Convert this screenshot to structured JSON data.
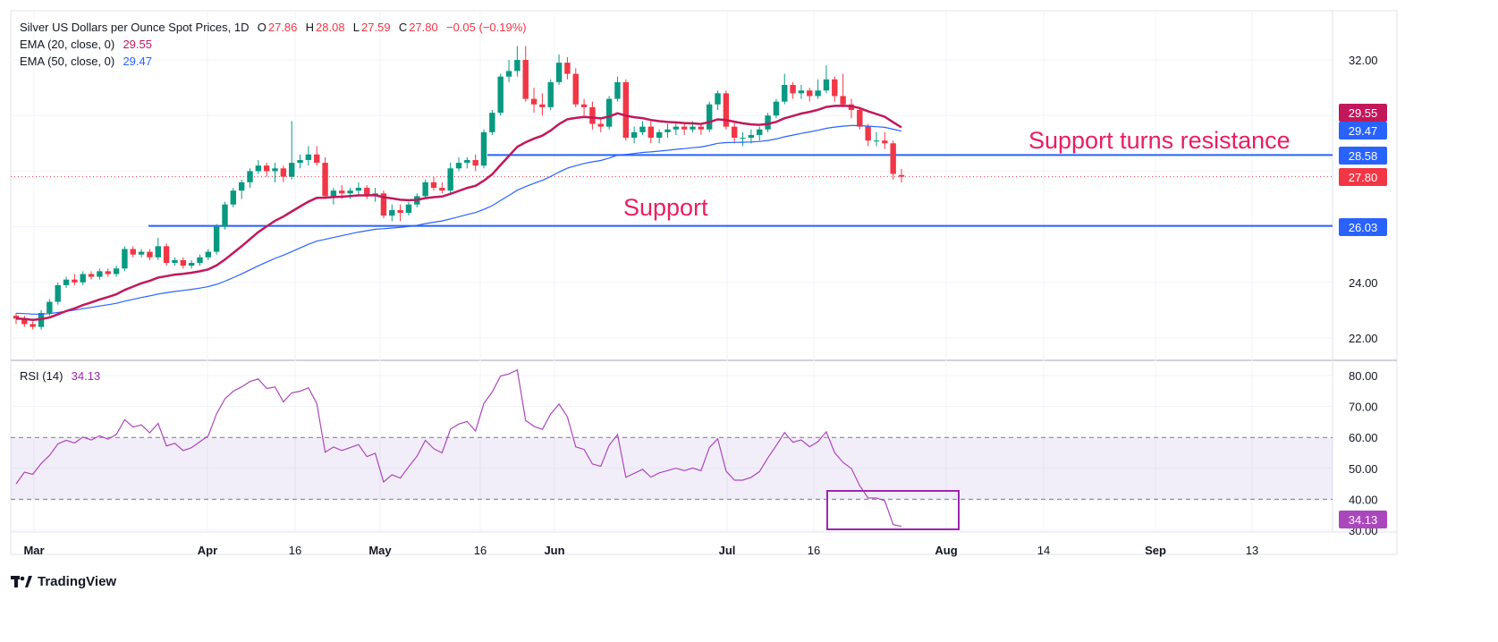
{
  "header": {
    "symbol": "Silver US Dollars per Ounce Spot Prices, 1D",
    "o_label": "O",
    "o": "27.86",
    "h_label": "H",
    "h": "28.08",
    "l_label": "L",
    "l": "27.59",
    "c_label": "C",
    "c": "27.80",
    "change": "−0.05 (−0.19%)"
  },
  "indicators": {
    "ema20": {
      "label": "EMA (20, close, 0)",
      "value": "29.55",
      "color": "#c2185b"
    },
    "ema50": {
      "label": "EMA (50, close, 0)",
      "value": "29.47",
      "color": "#2962ff"
    },
    "rsi": {
      "label": "RSI (14)",
      "value": "34.13",
      "color": "#9c27b0"
    }
  },
  "annotations": {
    "resistance_text": "Support turns resistance",
    "support_text": "Support",
    "resistance_level": 28.58,
    "support_level": 26.03,
    "resistance_label": "28.58",
    "support_label": "26.03",
    "last_price_label": "27.80"
  },
  "footer": {
    "brand": "TradingView"
  },
  "chart_data": {
    "type": "candlestick",
    "title": "Silver US Dollars per Ounce Spot Prices, 1D",
    "colors": {
      "up": "#089981",
      "down": "#f23645"
    },
    "ylim": [
      21.3,
      32.8
    ],
    "y_ticks": [
      "32.00",
      "24.00",
      "22.00"
    ],
    "rsi_ylim": [
      29,
      84
    ],
    "rsi_ticks": [
      "80.00",
      "70.00",
      "60.00",
      "50.00",
      "40.00",
      "30.00"
    ],
    "rsi_bands": [
      40,
      60
    ],
    "x_ticks": [
      "Mar",
      "Apr",
      "16",
      "May",
      "16",
      "Jun",
      "Jul",
      "16",
      "Aug",
      "14",
      "Sep",
      "13"
    ],
    "candles": [
      [
        22.8,
        22.9,
        22.5,
        22.7
      ],
      [
        22.7,
        22.8,
        22.4,
        22.5
      ],
      [
        22.5,
        22.6,
        22.3,
        22.4
      ],
      [
        22.4,
        23.0,
        22.3,
        22.9
      ],
      [
        22.9,
        23.4,
        22.8,
        23.3
      ],
      [
        23.3,
        24.0,
        23.2,
        23.9
      ],
      [
        23.9,
        24.2,
        23.8,
        24.1
      ],
      [
        24.1,
        24.3,
        23.9,
        24.0
      ],
      [
        24.0,
        24.4,
        23.9,
        24.3
      ],
      [
        24.3,
        24.4,
        24.1,
        24.2
      ],
      [
        24.2,
        24.5,
        24.1,
        24.4
      ],
      [
        24.4,
        24.5,
        24.2,
        24.3
      ],
      [
        24.3,
        24.6,
        24.2,
        24.5
      ],
      [
        24.5,
        25.3,
        24.4,
        25.2
      ],
      [
        25.2,
        25.3,
        24.9,
        25.0
      ],
      [
        25.0,
        25.2,
        24.9,
        25.1
      ],
      [
        25.1,
        25.2,
        24.8,
        24.9
      ],
      [
        24.9,
        25.6,
        24.8,
        25.3
      ],
      [
        25.3,
        25.4,
        24.6,
        24.7
      ],
      [
        24.7,
        24.9,
        24.6,
        24.8
      ],
      [
        24.8,
        24.9,
        24.5,
        24.6
      ],
      [
        24.6,
        24.8,
        24.5,
        24.7
      ],
      [
        24.7,
        25.0,
        24.6,
        24.9
      ],
      [
        24.9,
        25.2,
        24.8,
        25.1
      ],
      [
        25.1,
        26.1,
        25.0,
        26.0
      ],
      [
        26.0,
        26.9,
        25.9,
        26.8
      ],
      [
        26.8,
        27.4,
        26.7,
        27.3
      ],
      [
        27.3,
        27.7,
        27.0,
        27.6
      ],
      [
        27.6,
        28.1,
        27.4,
        28.0
      ],
      [
        28.0,
        28.4,
        27.9,
        28.2
      ],
      [
        28.2,
        28.3,
        27.8,
        28.0
      ],
      [
        28.0,
        28.3,
        27.6,
        28.1
      ],
      [
        28.1,
        28.2,
        27.6,
        27.8
      ],
      [
        27.8,
        29.8,
        27.7,
        28.3
      ],
      [
        28.3,
        28.6,
        28.1,
        28.4
      ],
      [
        28.4,
        28.9,
        28.2,
        28.6
      ],
      [
        28.6,
        28.9,
        28.2,
        28.3
      ],
      [
        28.3,
        28.5,
        27.0,
        27.1
      ],
      [
        27.1,
        27.4,
        26.8,
        27.3
      ],
      [
        27.3,
        27.5,
        27.0,
        27.2
      ],
      [
        27.2,
        27.4,
        27.0,
        27.3
      ],
      [
        27.3,
        27.6,
        27.1,
        27.4
      ],
      [
        27.4,
        27.5,
        27.0,
        27.1
      ],
      [
        27.1,
        27.4,
        26.9,
        27.2
      ],
      [
        27.2,
        27.3,
        26.3,
        26.4
      ],
      [
        26.4,
        26.8,
        26.2,
        26.6
      ],
      [
        26.6,
        26.8,
        26.2,
        26.5
      ],
      [
        26.5,
        26.9,
        26.4,
        26.8
      ],
      [
        26.8,
        27.2,
        26.7,
        27.1
      ],
      [
        27.1,
        27.7,
        27.0,
        27.6
      ],
      [
        27.6,
        27.8,
        27.3,
        27.4
      ],
      [
        27.4,
        27.6,
        27.2,
        27.3
      ],
      [
        27.3,
        28.3,
        27.2,
        28.1
      ],
      [
        28.1,
        28.5,
        28.0,
        28.3
      ],
      [
        28.3,
        28.5,
        28.1,
        28.4
      ],
      [
        28.4,
        28.6,
        28.0,
        28.2
      ],
      [
        28.2,
        29.5,
        28.1,
        29.4
      ],
      [
        29.4,
        30.2,
        29.3,
        30.1
      ],
      [
        30.1,
        31.5,
        30.0,
        31.4
      ],
      [
        31.4,
        32.0,
        31.2,
        31.6
      ],
      [
        31.6,
        32.5,
        31.4,
        32.0
      ],
      [
        32.0,
        32.5,
        30.5,
        30.6
      ],
      [
        30.6,
        31.0,
        30.1,
        30.4
      ],
      [
        30.4,
        30.8,
        30.0,
        30.3
      ],
      [
        30.3,
        31.3,
        30.2,
        31.2
      ],
      [
        31.2,
        32.2,
        31.1,
        31.9
      ],
      [
        31.9,
        32.1,
        31.3,
        31.5
      ],
      [
        31.5,
        31.7,
        30.3,
        30.4
      ],
      [
        30.4,
        30.6,
        30.0,
        30.3
      ],
      [
        30.3,
        30.5,
        29.5,
        29.7
      ],
      [
        29.7,
        29.9,
        29.4,
        29.6
      ],
      [
        29.6,
        30.7,
        29.5,
        30.6
      ],
      [
        30.6,
        31.4,
        30.5,
        31.2
      ],
      [
        31.2,
        31.3,
        29.1,
        29.2
      ],
      [
        29.2,
        29.6,
        29.0,
        29.4
      ],
      [
        29.4,
        29.8,
        29.3,
        29.6
      ],
      [
        29.6,
        29.8,
        29.0,
        29.2
      ],
      [
        29.2,
        29.5,
        29.0,
        29.4
      ],
      [
        29.4,
        29.7,
        29.2,
        29.5
      ],
      [
        29.5,
        29.8,
        29.3,
        29.6
      ],
      [
        29.6,
        29.7,
        29.3,
        29.5
      ],
      [
        29.5,
        29.8,
        29.4,
        29.6
      ],
      [
        29.6,
        29.7,
        29.3,
        29.5
      ],
      [
        29.5,
        30.5,
        29.4,
        30.4
      ],
      [
        30.4,
        30.9,
        30.2,
        30.8
      ],
      [
        30.8,
        30.9,
        29.5,
        29.6
      ],
      [
        29.6,
        29.8,
        29.0,
        29.2
      ],
      [
        29.2,
        29.4,
        28.9,
        29.2
      ],
      [
        29.2,
        29.5,
        29.0,
        29.3
      ],
      [
        29.3,
        29.6,
        29.1,
        29.5
      ],
      [
        29.5,
        30.1,
        29.4,
        30.0
      ],
      [
        30.0,
        30.6,
        29.9,
        30.5
      ],
      [
        30.5,
        31.5,
        30.4,
        31.1
      ],
      [
        31.1,
        31.2,
        30.6,
        30.8
      ],
      [
        30.8,
        31.1,
        30.6,
        30.9
      ],
      [
        30.9,
        31.0,
        30.5,
        30.7
      ],
      [
        30.7,
        31.3,
        30.6,
        30.9
      ],
      [
        30.9,
        31.8,
        30.8,
        31.3
      ],
      [
        31.3,
        31.4,
        30.5,
        30.7
      ],
      [
        30.7,
        31.5,
        30.3,
        30.4
      ],
      [
        30.4,
        30.6,
        29.9,
        30.2
      ],
      [
        30.2,
        30.3,
        29.5,
        29.6
      ],
      [
        29.6,
        29.7,
        28.9,
        29.1
      ],
      [
        29.1,
        29.4,
        28.9,
        29.1
      ],
      [
        29.1,
        29.4,
        28.8,
        29.0
      ],
      [
        29.0,
        29.1,
        27.7,
        27.9
      ],
      [
        27.86,
        28.08,
        27.59,
        27.8
      ]
    ]
  }
}
